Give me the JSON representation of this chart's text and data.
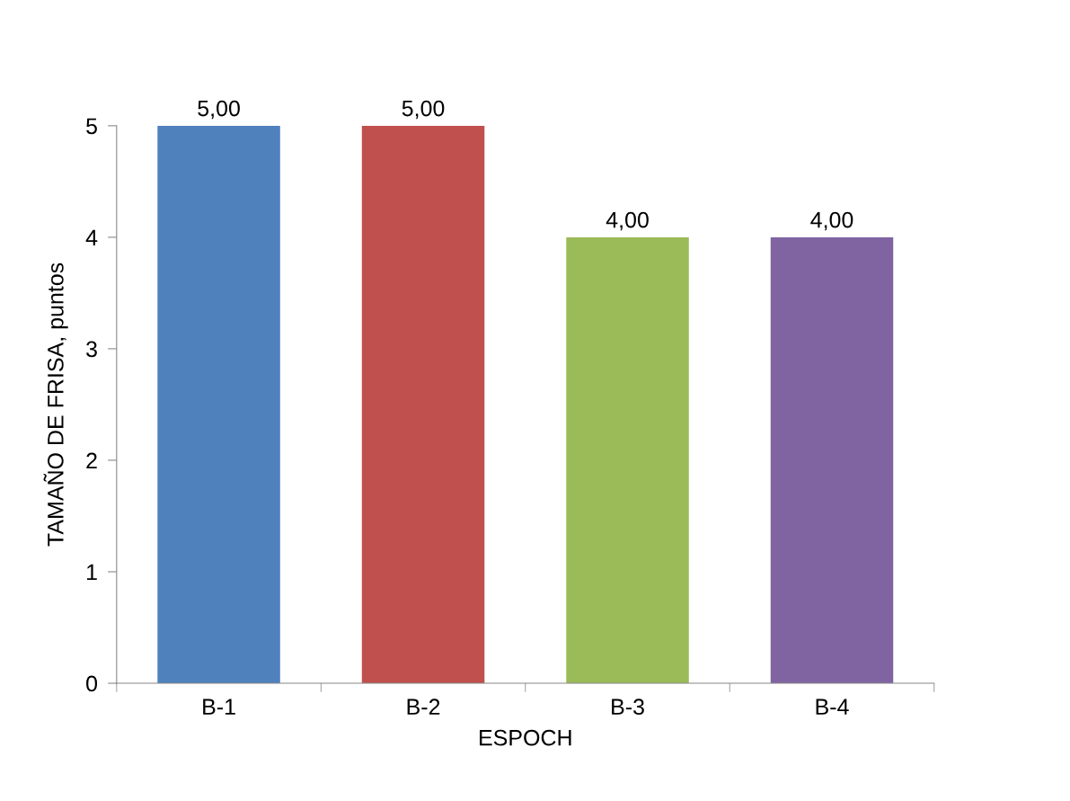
{
  "chart_data": {
    "type": "bar",
    "xlabel": "ESPOCH",
    "ylabel": "TAMAÑO DE FRISA, puntos",
    "categories": [
      "B-1",
      "B-2",
      "B-3",
      "B-4"
    ],
    "values": [
      5,
      5,
      4,
      4
    ],
    "colors": [
      "#4f81bd",
      "#c0504d",
      "#9bbb59",
      "#8064a2"
    ],
    "value_labels": [
      "5,00",
      "5,00",
      "4,00",
      "4,00"
    ],
    "ylim": [
      0,
      5
    ],
    "yticks": [
      0,
      1,
      2,
      3,
      4,
      5
    ],
    "grid": false,
    "legend": false
  }
}
